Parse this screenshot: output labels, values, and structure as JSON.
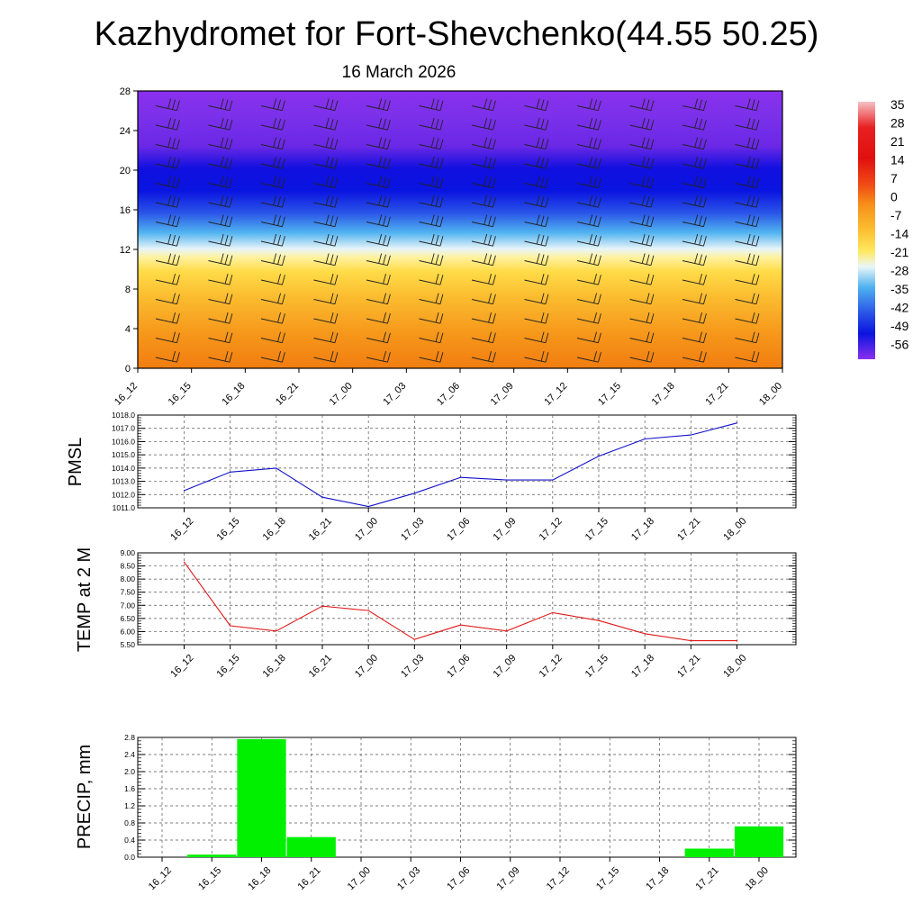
{
  "page": {
    "title": "Kazhydromet for Fort-Shevchenko(44.55 50.25)",
    "subtitle": "16 March 2026"
  },
  "chart_data": [
    {
      "id": "temperature-section",
      "type": "heatmap",
      "description_axis": "vertical cross-section with wind barbs",
      "x_ticks": [
        "16_12",
        "16_15",
        "16_18",
        "16_21",
        "17_00",
        "17_03",
        "17_06",
        "17_09",
        "17_12",
        "17_15",
        "17_18",
        "17_21",
        "18_00"
      ],
      "y_ticks": [
        0,
        4,
        8,
        12,
        16,
        20,
        24,
        28
      ],
      "ylim": [
        0,
        28
      ],
      "colorbar_labels": [
        "35",
        "28",
        "21",
        "14",
        "7",
        "0",
        "-7",
        "-14",
        "-21",
        "-28",
        "-35",
        "-42",
        "-49",
        "-56"
      ],
      "colors": {
        "violet": "#8a2be2",
        "blue": "#0a14e0",
        "light_blue": "#4fb2f0",
        "pale": "#eaf6f8",
        "yellow": "#ffe04a",
        "orange": "#f6a11c",
        "dark_orange": "#f27d10",
        "red": "#e01010",
        "pink": "#f4a0a6"
      }
    },
    {
      "id": "pmsl",
      "type": "line",
      "ylabel": "PMSL",
      "ylim": [
        1011.0,
        1018.0
      ],
      "y_ticks": [
        "1011.0",
        "1012.0",
        "1013.0",
        "1014.0",
        "1015.0",
        "1016.0",
        "1017.0",
        "1018.0"
      ],
      "categories": [
        "16_12",
        "16_15",
        "16_18",
        "16_21",
        "17_00",
        "17_03",
        "17_06",
        "17_09",
        "17_12",
        "17_15",
        "17_18",
        "17_21",
        "18_00"
      ],
      "values": [
        1012.3,
        1013.7,
        1014.0,
        1011.8,
        1011.1,
        1012.1,
        1013.3,
        1013.1,
        1013.1,
        1014.9,
        1016.2,
        1016.5,
        1017.4
      ],
      "color": "#1010c8"
    },
    {
      "id": "temp2m",
      "type": "line",
      "ylabel": "TEMP at 2 M",
      "ylim": [
        5.5,
        9.0
      ],
      "y_ticks": [
        "5.50",
        "6.00",
        "6.50",
        "7.00",
        "7.50",
        "8.00",
        "8.50",
        "9.00"
      ],
      "categories": [
        "16_12",
        "16_15",
        "16_18",
        "16_21",
        "17_00",
        "17_03",
        "17_06",
        "17_09",
        "17_12",
        "17_15",
        "17_18",
        "17_21",
        "18_00"
      ],
      "values": [
        8.65,
        6.22,
        6.02,
        6.97,
        6.8,
        5.7,
        6.25,
        6.02,
        6.72,
        6.42,
        5.92,
        5.65,
        5.65
      ],
      "color": "#e01818"
    },
    {
      "id": "precip",
      "type": "bar",
      "ylabel": "PRECIP, mm",
      "ylim": [
        0.0,
        2.8
      ],
      "y_ticks": [
        "0.0",
        "0.4",
        "0.8",
        "1.2",
        "1.6",
        "2.0",
        "2.4",
        "2.8"
      ],
      "categories": [
        "16_12",
        "16_15",
        "16_18",
        "16_21",
        "17_00",
        "17_03",
        "17_06",
        "17_09",
        "17_12",
        "17_15",
        "17_18",
        "17_21",
        "18_00"
      ],
      "values": [
        0.0,
        0.06,
        2.76,
        0.47,
        0.0,
        0.0,
        0.0,
        0.0,
        0.0,
        0.0,
        0.0,
        0.2,
        0.72
      ],
      "color": "#00f000"
    }
  ]
}
